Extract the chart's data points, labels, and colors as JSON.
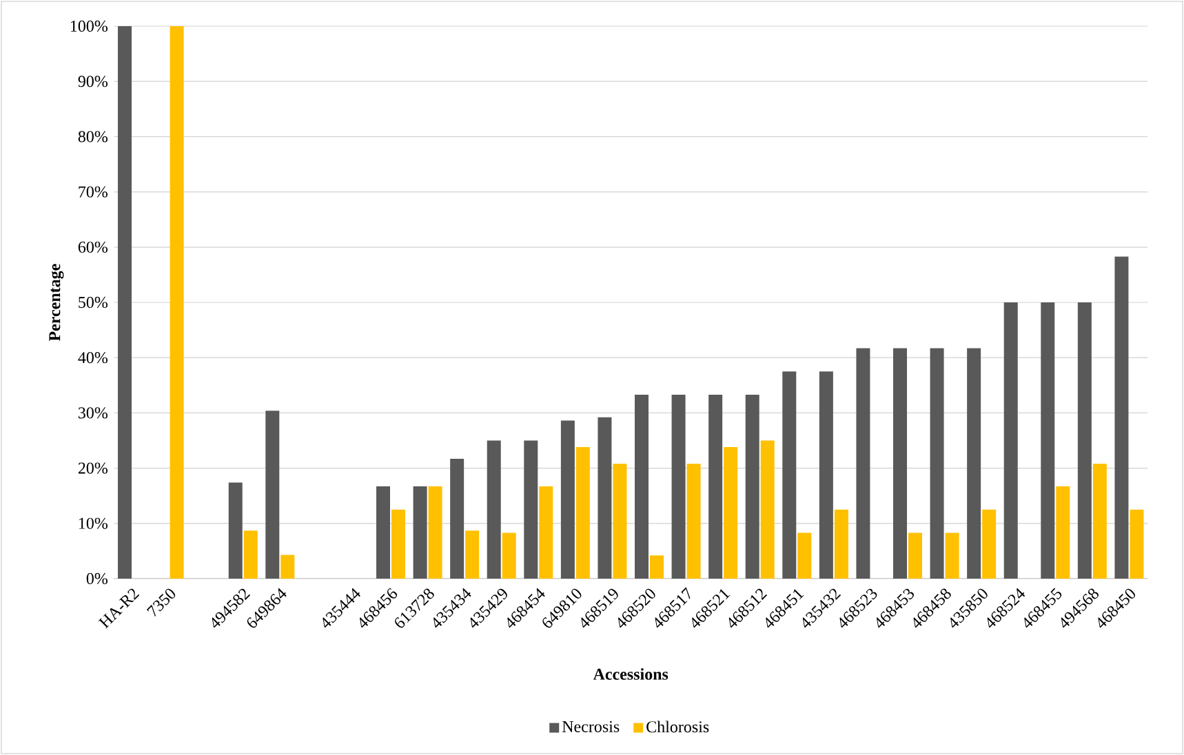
{
  "chart_data": {
    "type": "bar",
    "xlabel": "Accessions",
    "ylabel": "Percentage",
    "categories": [
      "HA-R2",
      "7350",
      null,
      "494582",
      "649864",
      null,
      "435444",
      "468456",
      "613728",
      "435434",
      "435429",
      "468454",
      "649810",
      "468519",
      "468520",
      "468517",
      "468521",
      "468512",
      "468451",
      "435432",
      "468523",
      "468453",
      "468458",
      "435850",
      "468524",
      "468455",
      "494568",
      "468450"
    ],
    "series": [
      {
        "name": "Necrosis",
        "color": "#595959",
        "values": [
          100,
          0,
          null,
          17.4,
          30.4,
          null,
          0,
          16.7,
          16.7,
          21.7,
          25,
          25,
          28.6,
          29.2,
          33.3,
          33.3,
          33.3,
          33.3,
          37.5,
          37.5,
          41.7,
          41.7,
          41.7,
          41.7,
          50,
          50,
          50,
          58.3
        ]
      },
      {
        "name": "Chlorosis",
        "color": "#ffc000",
        "values": [
          0,
          100,
          null,
          8.7,
          4.3,
          null,
          0,
          12.5,
          16.7,
          8.7,
          8.3,
          16.7,
          23.8,
          20.8,
          4.2,
          20.8,
          23.8,
          25,
          8.3,
          12.5,
          0,
          8.3,
          8.3,
          12.5,
          0,
          16.7,
          20.8,
          12.5
        ]
      }
    ],
    "ylim": [
      0,
      100
    ],
    "yticks": [
      {
        "value": 0,
        "label": "0%"
      },
      {
        "value": 10,
        "label": "10%"
      },
      {
        "value": 20,
        "label": "20%"
      },
      {
        "value": 30,
        "label": "30%"
      },
      {
        "value": 40,
        "label": "40%"
      },
      {
        "value": 50,
        "label": "50%"
      },
      {
        "value": 60,
        "label": "60%"
      },
      {
        "value": 70,
        "label": "70%"
      },
      {
        "value": 80,
        "label": "80%"
      },
      {
        "value": 90,
        "label": "90%"
      },
      {
        "value": 100,
        "label": "100%"
      }
    ],
    "grid": "y",
    "legend": "bottom"
  }
}
